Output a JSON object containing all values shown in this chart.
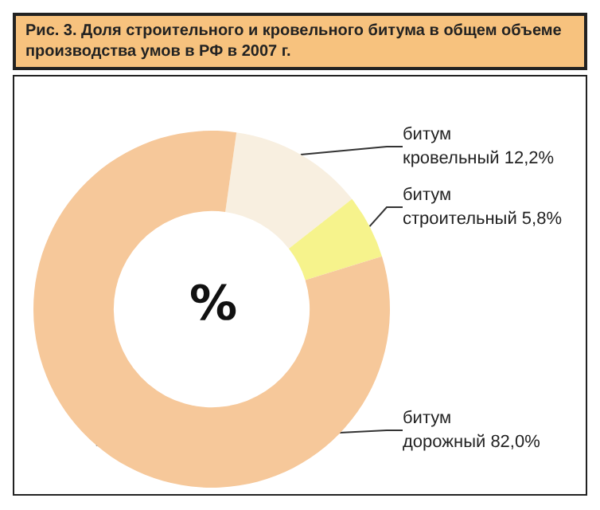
{
  "chart_data": {
    "type": "donut",
    "title": "Рис. 3. Доля строительного и кровельного битума в общем объеме производства умов в РФ в 2007 г.",
    "categories": [
      "битум\nкровельный",
      "битум\nстроительный",
      "битум\nдорожный"
    ],
    "values": [
      12.2,
      5.8,
      82.0
    ],
    "value_labels": [
      "12,2%",
      "5,8%",
      "82,0%"
    ],
    "colors": [
      "#f8efe0",
      "#f6f38c",
      "#f6c89a"
    ],
    "annotations": [
      "%"
    ]
  }
}
